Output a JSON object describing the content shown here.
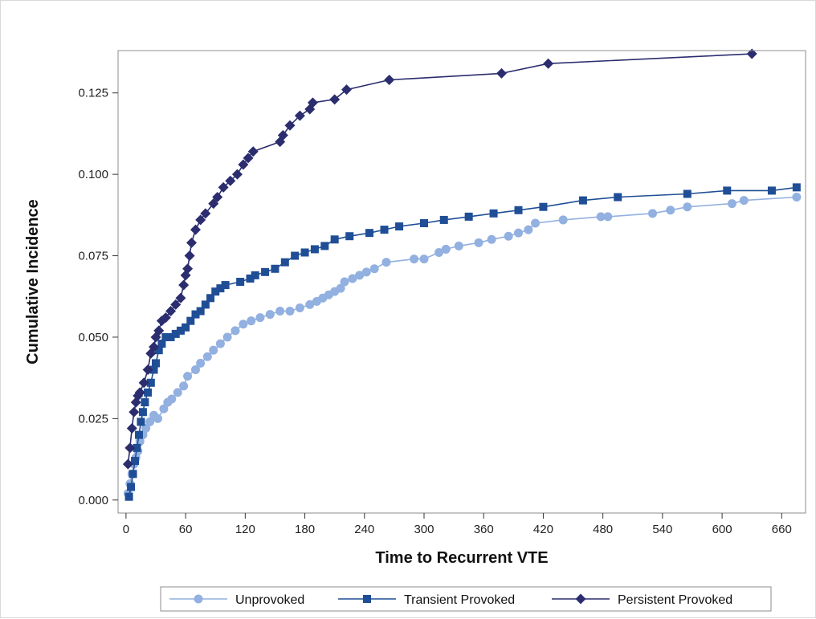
{
  "chart_data": {
    "type": "line",
    "title": "",
    "xlabel": "Time to Recurrent VTE",
    "ylabel": "Cumulative Incidence",
    "xlim": [
      -8,
      684
    ],
    "ylim": [
      -0.004,
      0.138
    ],
    "xticks": [
      0,
      60,
      120,
      180,
      240,
      300,
      360,
      420,
      480,
      540,
      600,
      660
    ],
    "xtick_labels": [
      "0",
      "60",
      "120",
      "180",
      "240",
      "300",
      "360",
      "420",
      "480",
      "540",
      "600",
      "660"
    ],
    "yticks": [
      0.0,
      0.025,
      0.05,
      0.075,
      0.1,
      0.125
    ],
    "ytick_labels": [
      "0.000",
      "0.025",
      "0.050",
      "0.075",
      "0.100",
      "0.125"
    ],
    "grid": false,
    "legend_position": "bottom",
    "series": [
      {
        "name": "Unprovoked",
        "color": "#92b0e0",
        "marker": "circle",
        "x": [
          2,
          4,
          6,
          8,
          10,
          12,
          14,
          17,
          20,
          24,
          28,
          32,
          38,
          42,
          46,
          52,
          58,
          62,
          70,
          75,
          82,
          88,
          95,
          102,
          110,
          118,
          126,
          135,
          145,
          155,
          165,
          175,
          185,
          192,
          198,
          204,
          210,
          216,
          220,
          228,
          235,
          242,
          250,
          262,
          290,
          300,
          315,
          322,
          335,
          355,
          368,
          385,
          395,
          405,
          412,
          440,
          478,
          485,
          530,
          548,
          565,
          610,
          622,
          675
        ],
        "y": [
          0.002,
          0.005,
          0.008,
          0.011,
          0.013,
          0.015,
          0.018,
          0.02,
          0.022,
          0.024,
          0.026,
          0.025,
          0.028,
          0.03,
          0.031,
          0.033,
          0.035,
          0.038,
          0.04,
          0.042,
          0.044,
          0.046,
          0.048,
          0.05,
          0.052,
          0.054,
          0.055,
          0.056,
          0.057,
          0.058,
          0.058,
          0.059,
          0.06,
          0.061,
          0.062,
          0.063,
          0.064,
          0.065,
          0.067,
          0.068,
          0.069,
          0.07,
          0.071,
          0.073,
          0.074,
          0.074,
          0.076,
          0.077,
          0.078,
          0.079,
          0.08,
          0.081,
          0.082,
          0.083,
          0.085,
          0.086,
          0.087,
          0.087,
          0.088,
          0.089,
          0.09,
          0.091,
          0.092,
          0.093
        ]
      },
      {
        "name": "Transient Provoked",
        "color": "#1f4e96",
        "marker": "square",
        "x": [
          3,
          5,
          7,
          9,
          11,
          13,
          15,
          17,
          19,
          22,
          25,
          28,
          30,
          33,
          36,
          40,
          45,
          50,
          55,
          60,
          65,
          70,
          75,
          80,
          85,
          90,
          95,
          100,
          115,
          125,
          130,
          140,
          150,
          160,
          170,
          180,
          190,
          200,
          210,
          225,
          245,
          260,
          275,
          300,
          320,
          345,
          370,
          395,
          420,
          460,
          495,
          565,
          605,
          650,
          675
        ],
        "y": [
          0.001,
          0.004,
          0.008,
          0.012,
          0.016,
          0.02,
          0.024,
          0.027,
          0.03,
          0.033,
          0.036,
          0.04,
          0.042,
          0.046,
          0.048,
          0.05,
          0.05,
          0.051,
          0.052,
          0.053,
          0.055,
          0.057,
          0.058,
          0.06,
          0.062,
          0.064,
          0.065,
          0.066,
          0.067,
          0.068,
          0.069,
          0.07,
          0.071,
          0.073,
          0.075,
          0.076,
          0.077,
          0.078,
          0.08,
          0.081,
          0.082,
          0.083,
          0.084,
          0.085,
          0.086,
          0.087,
          0.088,
          0.089,
          0.09,
          0.092,
          0.093,
          0.094,
          0.095,
          0.095,
          0.096
        ]
      },
      {
        "name": "Persistent Provoked",
        "color": "#2b2d6e",
        "marker": "diamond",
        "x": [
          2,
          4,
          6,
          8,
          10,
          12,
          14,
          18,
          22,
          25,
          28,
          30,
          33,
          36,
          40,
          45,
          50,
          55,
          58,
          60,
          62,
          64,
          66,
          70,
          75,
          80,
          88,
          92,
          98,
          105,
          112,
          118,
          123,
          128,
          155,
          158,
          165,
          175,
          185,
          188,
          210,
          222,
          265,
          378,
          425,
          630
        ],
        "y": [
          0.011,
          0.016,
          0.022,
          0.027,
          0.03,
          0.032,
          0.033,
          0.036,
          0.04,
          0.045,
          0.047,
          0.05,
          0.052,
          0.055,
          0.056,
          0.058,
          0.06,
          0.062,
          0.066,
          0.069,
          0.071,
          0.075,
          0.079,
          0.083,
          0.086,
          0.088,
          0.091,
          0.093,
          0.096,
          0.098,
          0.1,
          0.103,
          0.105,
          0.107,
          0.11,
          0.112,
          0.115,
          0.118,
          0.12,
          0.122,
          0.123,
          0.126,
          0.129,
          0.131,
          0.134,
          0.137
        ]
      }
    ]
  }
}
